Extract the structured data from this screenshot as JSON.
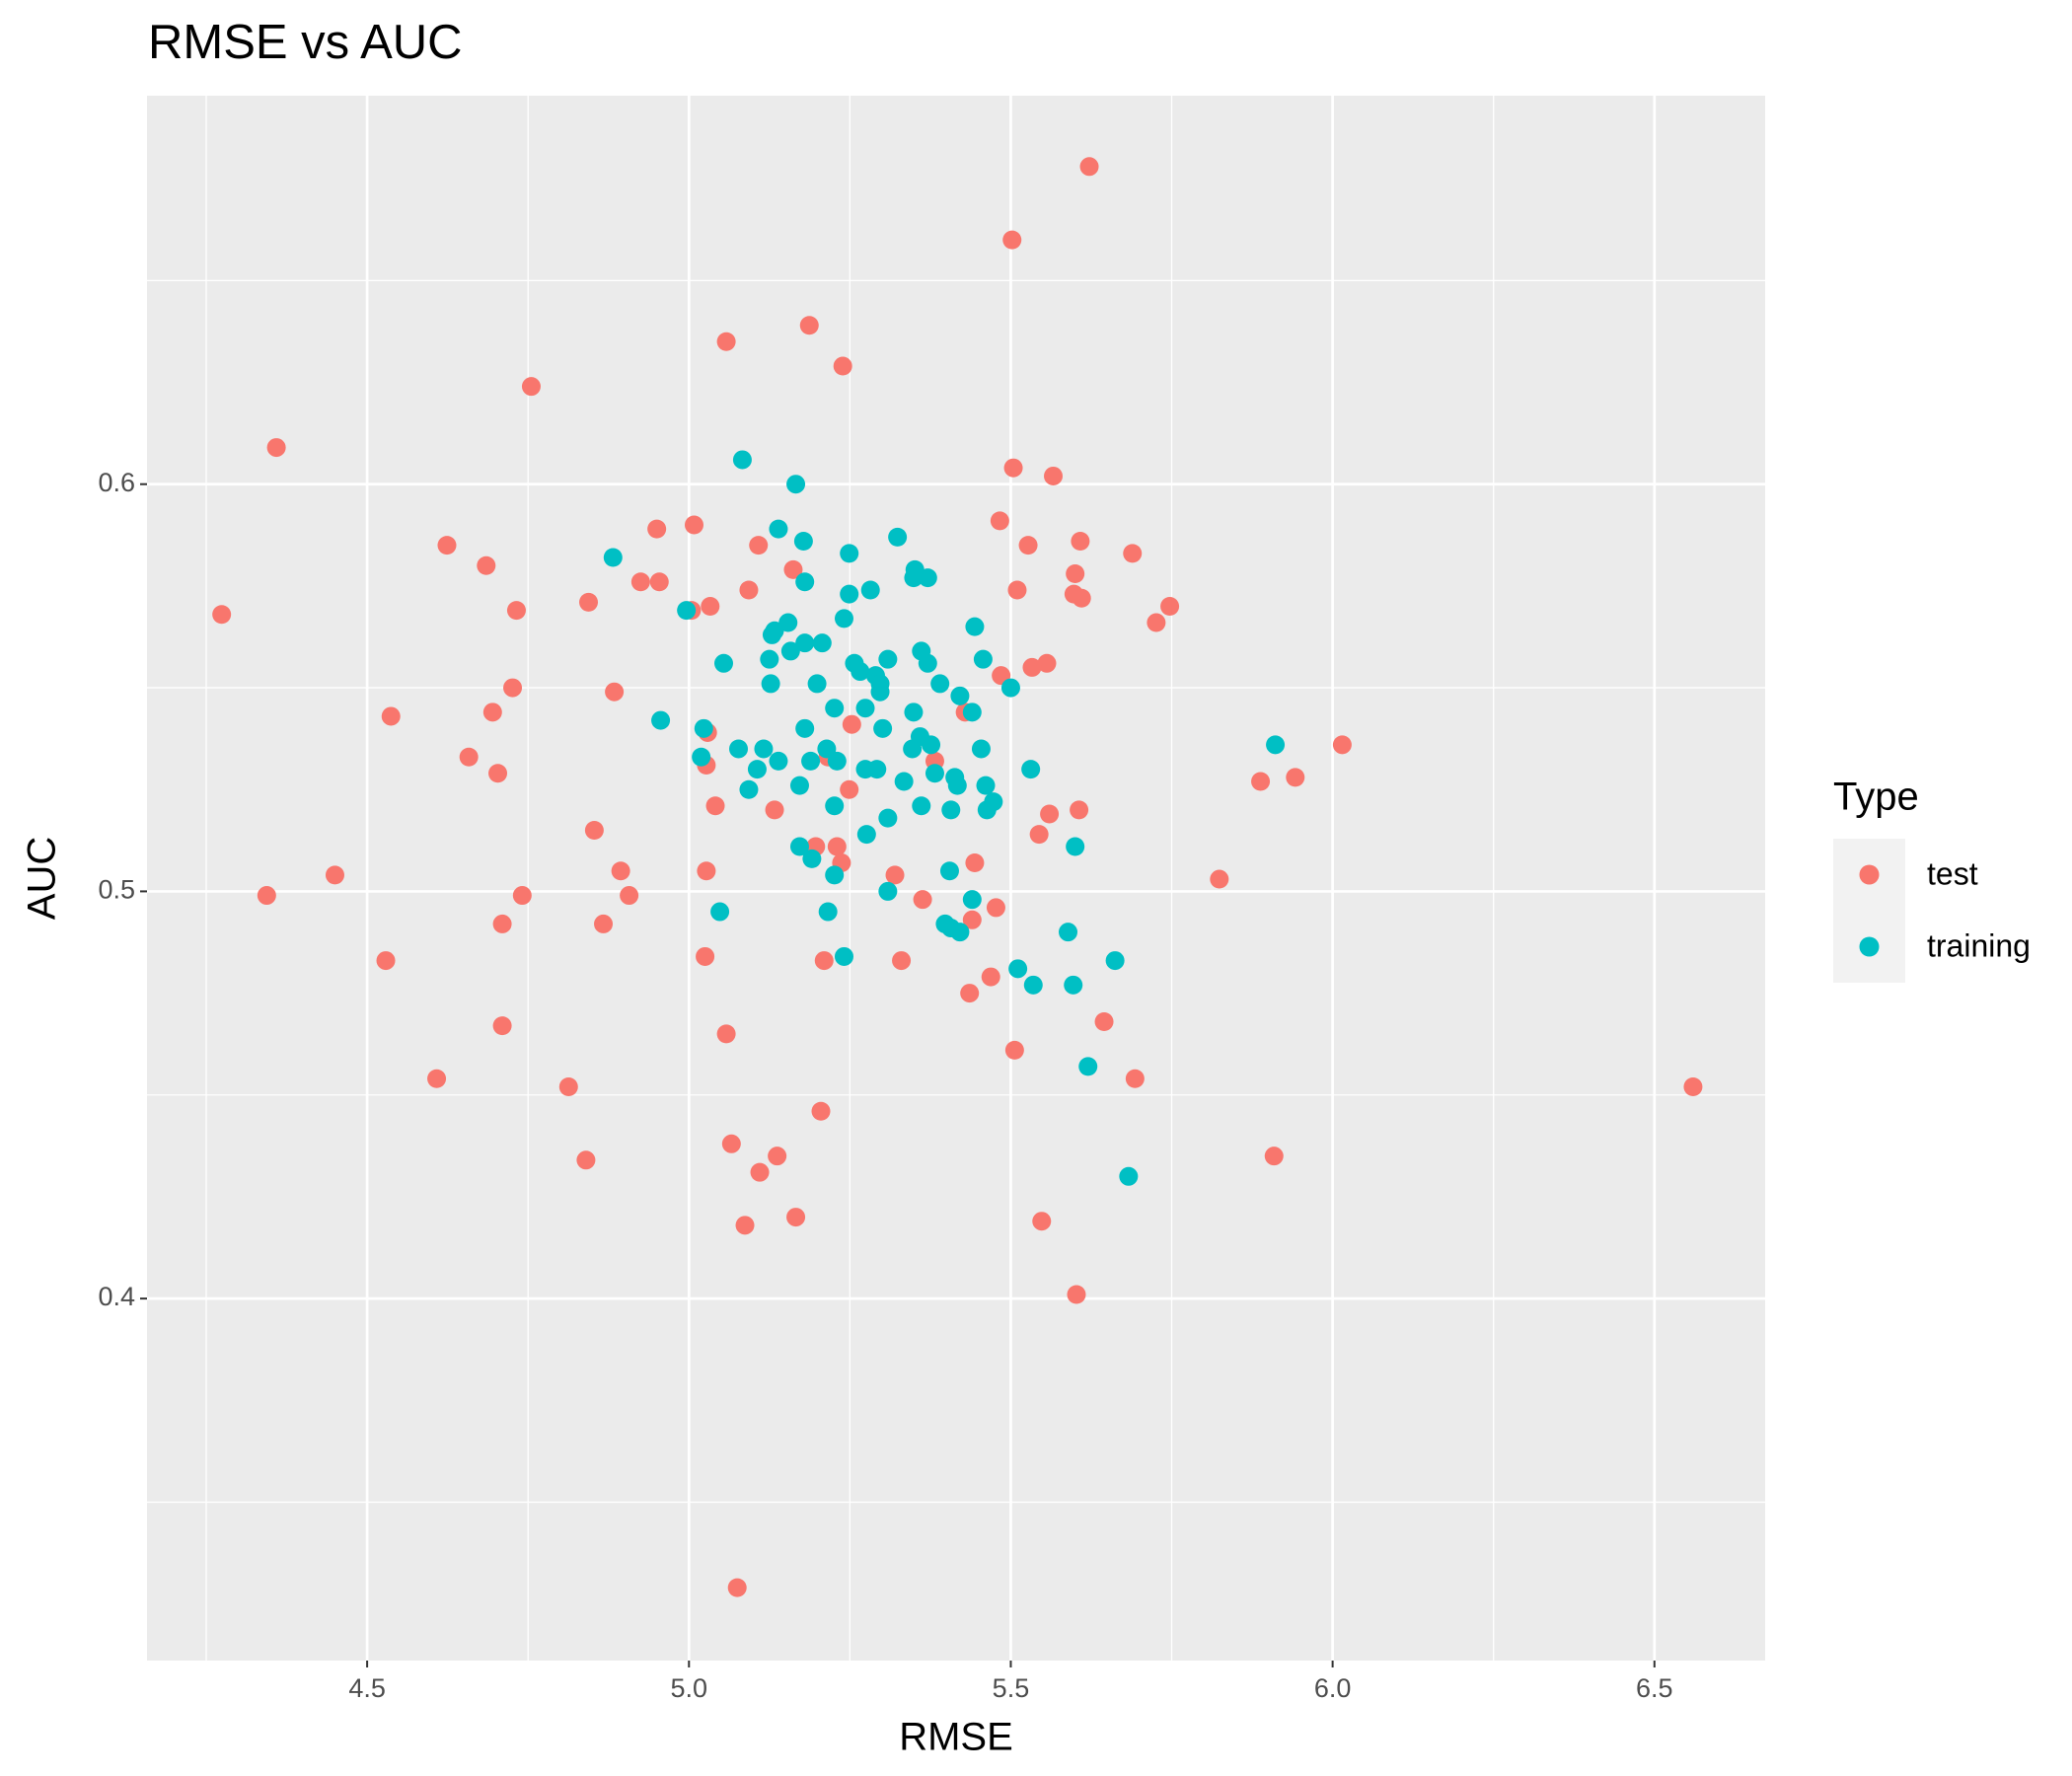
{
  "chart_data": {
    "type": "scatter",
    "title": "RMSE vs AUC",
    "x_label": "RMSE",
    "y_label": "AUC",
    "legend_title": "Type",
    "legend_position": "right",
    "grid": true,
    "xlim": [
      4.158,
      6.672
    ],
    "ylim": [
      0.3111,
      0.6954
    ],
    "xticks": [
      4.5,
      {
        "value": 5,
        "label": "5.0"
      },
      5.5,
      {
        "value": 6,
        "label": "6.0"
      },
      6.5
    ],
    "yticks": [
      0.4,
      0.5,
      0.6
    ],
    "xminor": [
      4.25,
      4.75,
      5.25,
      5.75,
      6.25
    ],
    "yminor": [
      0.35,
      0.45,
      0.55,
      0.65
    ],
    "series": [
      {
        "name": "test",
        "color": "#F8766D",
        "x": [
          5.622,
          5.502,
          5.187,
          5.058,
          5.239,
          4.755,
          4.359,
          5.504,
          5.566,
          5.483,
          5.008,
          4.95,
          5.608,
          4.624,
          5.108,
          5.527,
          5.689,
          4.685,
          5.162,
          4.925,
          4.954,
          5.6,
          5.51,
          5.093,
          5.598,
          5.61,
          4.844,
          5.747,
          5.033,
          5.004,
          4.732,
          4.274,
          5.726,
          5.556,
          5.533,
          5.485,
          4.726,
          4.884,
          5.429,
          4.695,
          4.537,
          5.253,
          5.029,
          6.015,
          4.658,
          5.216,
          5.027,
          5.382,
          4.703,
          5.942,
          5.888,
          5.249,
          5.041,
          5.133,
          5.606,
          5.56,
          5.544,
          4.853,
          5.197,
          5.23,
          5.237,
          5.444,
          4.45,
          5.027,
          4.894,
          5.32,
          4.344,
          4.907,
          4.741,
          5.363,
          5.824,
          5.477,
          4.71,
          4.867,
          5.44,
          4.529,
          5.025,
          5.21,
          5.33,
          5.469,
          5.436,
          4.71,
          5.058,
          5.645,
          5.506,
          4.608,
          4.813,
          5.693,
          6.56,
          5.205,
          5.066,
          4.84,
          5.137,
          5.909,
          5.11,
          5.166,
          5.548,
          5.087,
          5.602,
          5.075
        ],
        "y": [
          0.678,
          0.66,
          0.639,
          0.635,
          0.629,
          0.624,
          0.609,
          0.604,
          0.602,
          0.591,
          0.59,
          0.589,
          0.586,
          0.585,
          0.585,
          0.585,
          0.583,
          0.58,
          0.579,
          0.576,
          0.576,
          0.578,
          0.574,
          0.574,
          0.573,
          0.572,
          0.571,
          0.57,
          0.57,
          0.569,
          0.569,
          0.568,
          0.566,
          0.556,
          0.555,
          0.553,
          0.55,
          0.549,
          0.544,
          0.544,
          0.543,
          0.541,
          0.539,
          0.536,
          0.533,
          0.533,
          0.531,
          0.532,
          0.529,
          0.528,
          0.527,
          0.525,
          0.521,
          0.52,
          0.52,
          0.519,
          0.514,
          0.515,
          0.511,
          0.511,
          0.507,
          0.507,
          0.504,
          0.505,
          0.505,
          0.504,
          0.499,
          0.499,
          0.499,
          0.498,
          0.503,
          0.496,
          0.492,
          0.492,
          0.493,
          0.483,
          0.484,
          0.483,
          0.483,
          0.479,
          0.475,
          0.467,
          0.465,
          0.468,
          0.461,
          0.454,
          0.452,
          0.454,
          0.452,
          0.446,
          0.438,
          0.434,
          0.435,
          0.435,
          0.431,
          0.42,
          0.419,
          0.418,
          0.401,
          0.329
        ]
      },
      {
        "name": "training",
        "color": "#00BFC4",
        "x": [
          5.083,
          5.166,
          5.139,
          5.324,
          5.178,
          5.249,
          4.882,
          5.351,
          5.349,
          5.371,
          5.18,
          5.282,
          5.249,
          4.996,
          5.241,
          5.154,
          5.444,
          5.133,
          5.129,
          5.18,
          5.207,
          5.158,
          5.361,
          5.125,
          5.309,
          5.054,
          5.257,
          5.371,
          5.457,
          5.266,
          5.29,
          5.127,
          5.199,
          5.297,
          5.39,
          5.5,
          5.297,
          5.421,
          5.226,
          5.274,
          5.349,
          5.44,
          4.956,
          5.18,
          5.301,
          5.023,
          5.359,
          5.376,
          5.911,
          5.214,
          5.116,
          5.077,
          5.347,
          5.454,
          5.019,
          5.139,
          5.189,
          5.23,
          5.274,
          5.292,
          5.106,
          5.531,
          5.382,
          5.334,
          5.413,
          5.417,
          5.172,
          5.461,
          5.093,
          5.473,
          5.226,
          5.463,
          5.361,
          5.407,
          5.309,
          5.276,
          5.6,
          5.172,
          5.191,
          5.405,
          5.226,
          5.309,
          5.44,
          5.048,
          5.216,
          5.398,
          5.407,
          5.421,
          5.589,
          5.241,
          5.662,
          5.511,
          5.535,
          5.597,
          5.62,
          5.683
        ],
        "y": [
          0.606,
          0.6,
          0.589,
          0.587,
          0.586,
          0.583,
          0.582,
          0.579,
          0.577,
          0.577,
          0.576,
          0.574,
          0.573,
          0.569,
          0.567,
          0.566,
          0.565,
          0.564,
          0.563,
          0.561,
          0.561,
          0.559,
          0.559,
          0.557,
          0.557,
          0.556,
          0.556,
          0.556,
          0.557,
          0.554,
          0.553,
          0.551,
          0.551,
          0.551,
          0.551,
          0.55,
          0.549,
          0.548,
          0.545,
          0.545,
          0.544,
          0.544,
          0.542,
          0.54,
          0.54,
          0.54,
          0.538,
          0.536,
          0.536,
          0.535,
          0.535,
          0.535,
          0.535,
          0.535,
          0.533,
          0.532,
          0.532,
          0.532,
          0.53,
          0.53,
          0.53,
          0.53,
          0.529,
          0.527,
          0.528,
          0.526,
          0.526,
          0.526,
          0.525,
          0.522,
          0.521,
          0.52,
          0.521,
          0.52,
          0.518,
          0.514,
          0.511,
          0.511,
          0.508,
          0.505,
          0.504,
          0.5,
          0.498,
          0.495,
          0.495,
          0.492,
          0.491,
          0.49,
          0.49,
          0.484,
          0.483,
          0.481,
          0.477,
          0.477,
          0.457,
          0.43
        ]
      }
    ]
  }
}
